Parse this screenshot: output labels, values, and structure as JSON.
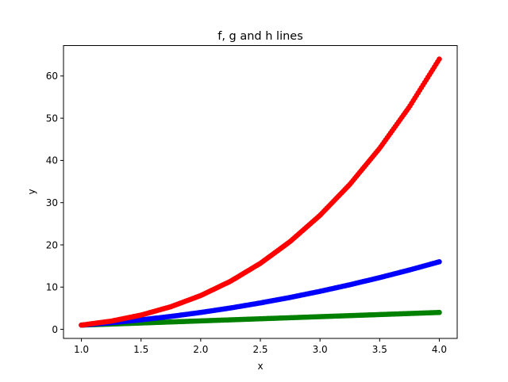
{
  "chart_data": {
    "type": "scatter",
    "title": "f, g and h lines",
    "xlabel": "x",
    "ylabel": "y",
    "xlim": [
      0.85,
      4.15
    ],
    "ylim": [
      -2.15,
      67.2
    ],
    "xticks": [
      1.0,
      1.5,
      2.0,
      2.5,
      3.0,
      3.5,
      4.0
    ],
    "xtick_labels": [
      "1.0",
      "1.5",
      "2.0",
      "2.5",
      "3.0",
      "3.5",
      "4.0"
    ],
    "yticks": [
      0,
      10,
      20,
      30,
      40,
      50,
      60
    ],
    "ytick_labels": [
      "0",
      "10",
      "20",
      "30",
      "40",
      "50",
      "60"
    ],
    "grid": false,
    "legend": "none",
    "x_range": [
      1.0,
      4.0
    ],
    "series": [
      {
        "color": "#008000",
        "x": [
          1.0,
          1.25,
          1.5,
          1.75,
          2.0,
          2.25,
          2.5,
          2.75,
          3.0,
          3.25,
          3.5,
          3.75,
          4.0
        ],
        "y": [
          1.0,
          1.25,
          1.5,
          1.75,
          2.0,
          2.25,
          2.5,
          2.75,
          3.0,
          3.25,
          3.5,
          3.75,
          4.0
        ]
      },
      {
        "color": "#0000ff",
        "x": [
          1.0,
          1.25,
          1.5,
          1.75,
          2.0,
          2.25,
          2.5,
          2.75,
          3.0,
          3.25,
          3.5,
          3.75,
          4.0
        ],
        "y": [
          1.0,
          1.56,
          2.25,
          3.06,
          4.0,
          5.06,
          6.25,
          7.56,
          9.0,
          10.56,
          12.25,
          14.06,
          16.0
        ]
      },
      {
        "color": "#ff0000",
        "x": [
          1.0,
          1.25,
          1.5,
          1.75,
          2.0,
          2.25,
          2.5,
          2.75,
          3.0,
          3.25,
          3.5,
          3.75,
          4.0
        ],
        "y": [
          1.0,
          1.95,
          3.38,
          5.36,
          8.0,
          11.39,
          15.63,
          20.8,
          27.0,
          34.33,
          42.88,
          52.73,
          64.0
        ]
      }
    ]
  }
}
